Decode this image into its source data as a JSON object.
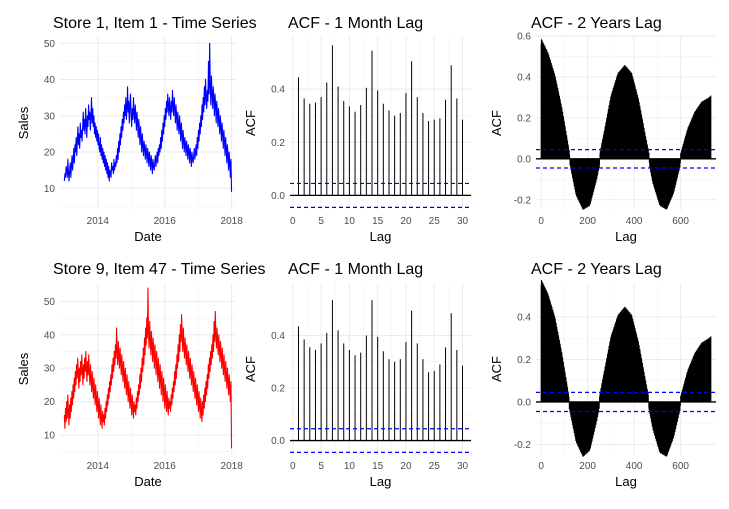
{
  "chart_data": [
    {
      "id": "ts1",
      "type": "line",
      "title": "Store 1, Item 1 - Time Series",
      "xlabel": "Date",
      "ylabel": "Sales",
      "color": "#0000ff",
      "x_range": [
        "2013-01-01",
        "2017-12-31"
      ],
      "xlim": [
        2012.87,
        2018.13
      ],
      "ylim": [
        4.0,
        52.0
      ],
      "xticks": [
        2014,
        2016,
        2018
      ],
      "xtick_labels": [
        "2014",
        "2016",
        "2018"
      ],
      "yticks": [
        10,
        20,
        30,
        40,
        50
      ],
      "ytick_labels": [
        "10",
        "20",
        "30",
        "40",
        "50"
      ],
      "grid": true,
      "series": [
        {
          "values": [
            12,
            14,
            13,
            16,
            15,
            13,
            18,
            14,
            12,
            15,
            17,
            13,
            16,
            19,
            15,
            18,
            21,
            17,
            22,
            20,
            24,
            19,
            23,
            27,
            22,
            25,
            21,
            28,
            24,
            26,
            23,
            27,
            31,
            26,
            29,
            25,
            32,
            28,
            24,
            30,
            27,
            33,
            29,
            31,
            26,
            30,
            35,
            28,
            32,
            27,
            30,
            25,
            28,
            24,
            27,
            23,
            26,
            22,
            25,
            21,
            20,
            24,
            19,
            22,
            18,
            21,
            17,
            20,
            16,
            19,
            15,
            18,
            14,
            17,
            13,
            16,
            12,
            15,
            14,
            13,
            17,
            15,
            16,
            14,
            18,
            15,
            17,
            16,
            19,
            17,
            21,
            18,
            23,
            20,
            25,
            22,
            27,
            24,
            29,
            26,
            31,
            28,
            33,
            30,
            35,
            29,
            32,
            38,
            31,
            34,
            28,
            33,
            36,
            30,
            27,
            32,
            29,
            35,
            31,
            28,
            33,
            30,
            26,
            31,
            28,
            24,
            29,
            26,
            22,
            27,
            24,
            20,
            25,
            22,
            19,
            23,
            21,
            18,
            22,
            20,
            17,
            21,
            19,
            16,
            20,
            18,
            15,
            19,
            17,
            14,
            18,
            16,
            15,
            17,
            19,
            16,
            18,
            20,
            17,
            21,
            19,
            22,
            20,
            24,
            21,
            26,
            23,
            28,
            25,
            30,
            27,
            32,
            29,
            34,
            31,
            36,
            33,
            30,
            35,
            32,
            29,
            34,
            31,
            37,
            33,
            30,
            35,
            32,
            28,
            33,
            30,
            26,
            31,
            28,
            25,
            30,
            27,
            23,
            28,
            25,
            21,
            26,
            23,
            20,
            24,
            22,
            19,
            23,
            21,
            18,
            22,
            20,
            17,
            21,
            19,
            16,
            20,
            18,
            17,
            19,
            21,
            18,
            20,
            22,
            19,
            24,
            21,
            26,
            23,
            28,
            25,
            30,
            27,
            33,
            29,
            35,
            31,
            38,
            33,
            40,
            35,
            32,
            37,
            34,
            45,
            36,
            50,
            38,
            33,
            41,
            36,
            32,
            38,
            35,
            30,
            36,
            33,
            28,
            34,
            31,
            27,
            32,
            29,
            25,
            30,
            27,
            23,
            28,
            25,
            21,
            26,
            23,
            19,
            24,
            21,
            17,
            22,
            19,
            15,
            20,
            17,
            13,
            18,
            9
          ]
        }
      ]
    },
    {
      "id": "acf1_month",
      "type": "bar",
      "title": "ACF - 1 Month Lag",
      "xlabel": "Lag",
      "ylabel": "ACF",
      "xlim": [
        -0.5,
        31.5
      ],
      "ylim": [
        -0.055,
        0.6
      ],
      "xticks": [
        0,
        5,
        10,
        15,
        20,
        25,
        30
      ],
      "xtick_labels": [
        "0",
        "5",
        "10",
        "15",
        "20",
        "25",
        "30"
      ],
      "yticks": [
        0.0,
        0.2,
        0.4
      ],
      "ytick_labels": [
        "0.0",
        "0.2",
        "0.4"
      ],
      "confidence": 0.045,
      "grid": true,
      "x": [
        1,
        2,
        3,
        4,
        5,
        6,
        7,
        8,
        9,
        10,
        11,
        12,
        13,
        14,
        15,
        16,
        17,
        18,
        19,
        20,
        21,
        22,
        23,
        24,
        25,
        26,
        27,
        28,
        29,
        30
      ],
      "values": [
        0.445,
        0.365,
        0.345,
        0.35,
        0.37,
        0.425,
        0.565,
        0.41,
        0.355,
        0.335,
        0.315,
        0.34,
        0.405,
        0.545,
        0.395,
        0.345,
        0.32,
        0.3,
        0.31,
        0.385,
        0.505,
        0.37,
        0.31,
        0.28,
        0.285,
        0.29,
        0.36,
        0.49,
        0.365,
        0.285
      ]
    },
    {
      "id": "acf1_years",
      "type": "bar",
      "title": "ACF - 2 Years Lag",
      "xlabel": "Lag",
      "ylabel": "ACF",
      "xlim": [
        -22,
        752
      ],
      "ylim": [
        -0.25,
        0.6
      ],
      "xticks": [
        0,
        200,
        400,
        600
      ],
      "xtick_labels": [
        "0",
        "200",
        "400",
        "600"
      ],
      "yticks": [
        -0.2,
        0.0,
        0.2,
        0.4,
        0.6
      ],
      "ytick_labels": [
        "-0.2",
        "0.0",
        "0.2",
        "0.4",
        "0.6"
      ],
      "confidence": 0.045,
      "grid": true,
      "x": [
        0,
        30,
        60,
        90,
        120,
        150,
        180,
        210,
        240,
        270,
        300,
        330,
        360,
        390,
        420,
        450,
        480,
        510,
        540,
        570,
        600,
        630,
        660,
        690,
        720,
        730
      ],
      "values": [
        0.56,
        0.49,
        0.38,
        0.22,
        0.02,
        -0.15,
        -0.22,
        -0.2,
        -0.07,
        0.1,
        0.28,
        0.39,
        0.43,
        0.39,
        0.26,
        0.08,
        -0.09,
        -0.2,
        -0.22,
        -0.14,
        0.0,
        0.12,
        0.2,
        0.25,
        0.27,
        0.28
      ]
    },
    {
      "id": "ts2",
      "type": "line",
      "title": "Store 9, Item 47 - Time Series",
      "xlabel": "Date",
      "ylabel": "Sales",
      "color": "#ff0000",
      "x_range": [
        "2013-01-01",
        "2017-12-31"
      ],
      "xlim": [
        2012.87,
        2018.13
      ],
      "ylim": [
        4.0,
        55.5
      ],
      "xticks": [
        2014,
        2016,
        2018
      ],
      "xtick_labels": [
        "2014",
        "2016",
        "2018"
      ],
      "yticks": [
        10,
        20,
        30,
        40,
        50
      ],
      "ytick_labels": [
        "10",
        "20",
        "30",
        "40",
        "50"
      ],
      "grid": true,
      "series": [
        {
          "values": [
            16,
            12,
            18,
            14,
            20,
            15,
            22,
            17,
            13,
            19,
            15,
            21,
            17,
            23,
            19,
            25,
            21,
            27,
            23,
            29,
            25,
            31,
            27,
            33,
            29,
            24,
            30,
            26,
            32,
            28,
            34,
            29,
            25,
            31,
            27,
            33,
            29,
            35,
            30,
            26,
            32,
            28,
            34,
            29,
            25,
            31,
            27,
            23,
            29,
            25,
            21,
            27,
            23,
            19,
            25,
            21,
            17,
            23,
            19,
            15,
            21,
            17,
            13,
            19,
            15,
            12,
            17,
            14,
            16,
            13,
            18,
            15,
            20,
            17,
            22,
            19,
            24,
            21,
            26,
            23,
            28,
            25,
            31,
            27,
            33,
            29,
            35,
            31,
            37,
            33,
            42,
            35,
            31,
            38,
            34,
            30,
            36,
            32,
            28,
            34,
            30,
            26,
            32,
            28,
            24,
            30,
            26,
            22,
            28,
            24,
            20,
            26,
            22,
            18,
            24,
            20,
            16,
            22,
            18,
            15,
            20,
            17,
            19,
            16,
            21,
            18,
            23,
            20,
            25,
            22,
            28,
            24,
            30,
            26,
            33,
            29,
            36,
            31,
            39,
            34,
            42,
            37,
            45,
            39,
            54,
            41,
            36,
            44,
            39,
            34,
            41,
            37,
            32,
            39,
            35,
            30,
            37,
            33,
            28,
            35,
            31,
            26,
            33,
            29,
            24,
            31,
            27,
            22,
            29,
            25,
            20,
            27,
            23,
            18,
            25,
            21,
            17,
            23,
            19,
            16,
            21,
            18,
            20,
            17,
            22,
            19,
            24,
            21,
            26,
            23,
            29,
            25,
            31,
            27,
            34,
            30,
            37,
            32,
            40,
            35,
            43,
            38,
            46,
            40,
            35,
            42,
            37,
            33,
            39,
            35,
            31,
            37,
            33,
            29,
            35,
            31,
            27,
            33,
            29,
            25,
            31,
            27,
            23,
            29,
            25,
            21,
            27,
            23,
            19,
            25,
            21,
            17,
            23,
            19,
            15,
            21,
            17,
            14,
            20,
            16,
            22,
            18,
            24,
            20,
            26,
            22,
            28,
            24,
            31,
            27,
            33,
            29,
            35,
            31,
            37,
            33,
            40,
            35,
            44,
            38,
            47,
            40,
            36,
            42,
            38,
            34,
            40,
            36,
            32,
            38,
            34,
            30,
            36,
            32,
            28,
            34,
            30,
            26,
            32,
            28,
            24,
            30,
            26,
            22,
            28,
            24,
            20,
            26,
            6
          ]
        }
      ]
    },
    {
      "id": "acf2_month",
      "type": "bar",
      "title": "ACF - 1 Month Lag",
      "xlabel": "Lag",
      "ylabel": "ACF",
      "xlim": [
        -0.5,
        31.5
      ],
      "ylim": [
        -0.055,
        0.6
      ],
      "xticks": [
        0,
        5,
        10,
        15,
        20,
        25,
        30
      ],
      "xtick_labels": [
        "0",
        "5",
        "10",
        "15",
        "20",
        "25",
        "30"
      ],
      "yticks": [
        0.0,
        0.2,
        0.4
      ],
      "ytick_labels": [
        "0.0",
        "0.2",
        "0.4"
      ],
      "confidence": 0.045,
      "grid": true,
      "x": [
        1,
        2,
        3,
        4,
        5,
        6,
        7,
        8,
        9,
        10,
        11,
        12,
        13,
        14,
        15,
        16,
        17,
        18,
        19,
        20,
        21,
        22,
        23,
        24,
        25,
        26,
        27,
        28,
        29,
        30
      ],
      "values": [
        0.435,
        0.385,
        0.355,
        0.345,
        0.37,
        0.41,
        0.535,
        0.42,
        0.37,
        0.345,
        0.325,
        0.335,
        0.4,
        0.535,
        0.395,
        0.34,
        0.31,
        0.3,
        0.31,
        0.375,
        0.495,
        0.37,
        0.31,
        0.26,
        0.265,
        0.29,
        0.355,
        0.485,
        0.345,
        0.285
      ]
    },
    {
      "id": "acf2_years",
      "type": "bar",
      "title": "ACF - 2 Years Lag",
      "xlabel": "Lag",
      "ylabel": "ACF",
      "xlim": [
        -22,
        752
      ],
      "ylim": [
        -0.25,
        0.56
      ],
      "xticks": [
        0,
        200,
        400,
        600
      ],
      "xtick_labels": [
        "0",
        "200",
        "400",
        "600"
      ],
      "yticks": [
        -0.2,
        0.0,
        0.2,
        0.4
      ],
      "ytick_labels": [
        "-0.2",
        "0.0",
        "0.2",
        "0.4"
      ],
      "confidence": 0.045,
      "grid": true,
      "x": [
        0,
        30,
        60,
        90,
        120,
        150,
        180,
        210,
        240,
        270,
        300,
        330,
        360,
        390,
        420,
        450,
        480,
        510,
        540,
        570,
        600,
        630,
        660,
        690,
        720,
        730
      ],
      "values": [
        0.55,
        0.48,
        0.37,
        0.2,
        0.0,
        -0.16,
        -0.23,
        -0.2,
        -0.06,
        0.11,
        0.28,
        0.38,
        0.42,
        0.38,
        0.25,
        0.07,
        -0.1,
        -0.21,
        -0.23,
        -0.14,
        0.0,
        0.12,
        0.2,
        0.25,
        0.27,
        0.28
      ]
    }
  ]
}
